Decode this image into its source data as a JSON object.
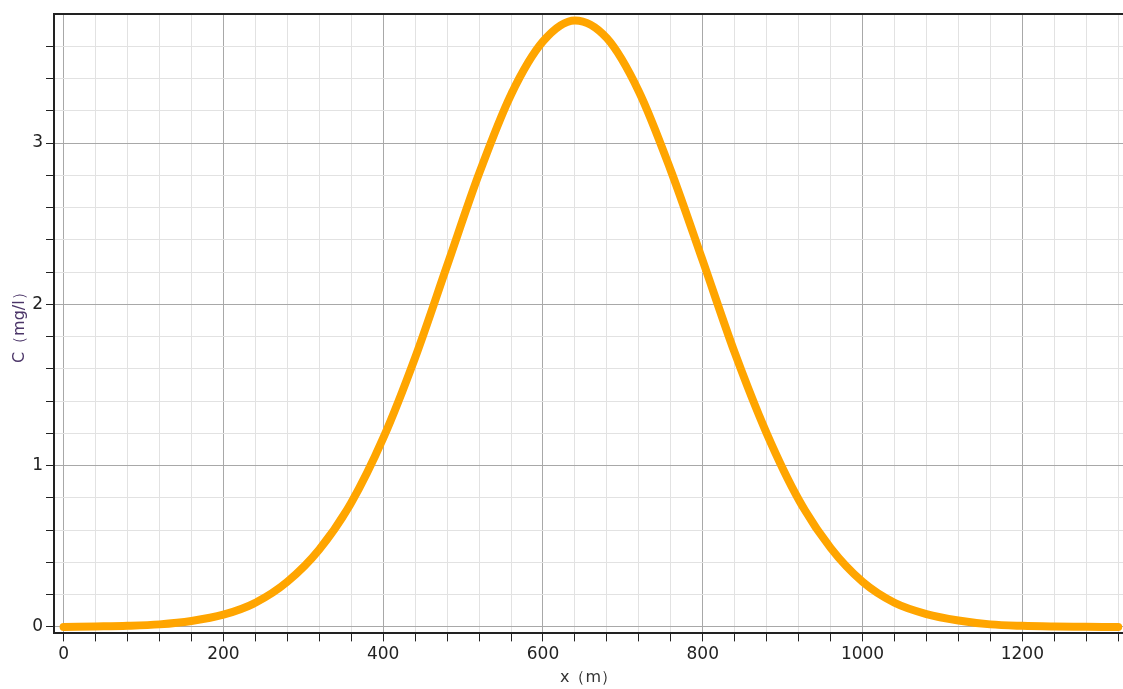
{
  "chart_data": {
    "type": "line",
    "xlabel": "x（m）",
    "ylabel": "C（mg/l）",
    "x": [
      0,
      40,
      80,
      120,
      160,
      200,
      240,
      280,
      320,
      360,
      400,
      440,
      480,
      520,
      560,
      600,
      640,
      680,
      720,
      760,
      800,
      840,
      880,
      920,
      960,
      1000,
      1040,
      1080,
      1120,
      1160,
      1200,
      1240,
      1280,
      1320
    ],
    "series": [
      {
        "color": "#ffa500",
        "values": [
          0,
          0.003,
          0.007,
          0.016,
          0.037,
          0.076,
          0.15,
          0.28,
          0.48,
          0.77,
          1.17,
          1.67,
          2.24,
          2.81,
          3.3,
          3.63,
          3.76,
          3.65,
          3.32,
          2.83,
          2.27,
          1.7,
          1.2,
          0.79,
          0.49,
          0.28,
          0.15,
          0.08,
          0.04,
          0.016,
          0.007,
          0.003,
          0.001,
          0
        ]
      }
    ],
    "xlim": [
      -12,
      1326
    ],
    "ylim": [
      -0.04,
      3.8
    ],
    "xticks": [
      0,
      {
        "value": 40,
        "label": null
      },
      {
        "value": 80,
        "label": null
      },
      {
        "value": 120,
        "label": null
      },
      {
        "value": 160,
        "label": null
      },
      200,
      {
        "value": 240,
        "label": null
      },
      {
        "value": 280,
        "label": null
      },
      {
        "value": 320,
        "label": null
      },
      {
        "value": 360,
        "label": null
      },
      400,
      {
        "value": 440,
        "label": null
      },
      {
        "value": 480,
        "label": null
      },
      {
        "value": 520,
        "label": null
      },
      {
        "value": 560,
        "label": null
      },
      600,
      {
        "value": 640,
        "label": null
      },
      {
        "value": 680,
        "label": null
      },
      {
        "value": 720,
        "label": null
      },
      {
        "value": 760,
        "label": null
      },
      800,
      {
        "value": 840,
        "label": null
      },
      {
        "value": 880,
        "label": null
      },
      {
        "value": 920,
        "label": null
      },
      {
        "value": 960,
        "label": null
      },
      1000,
      {
        "value": 1040,
        "label": null
      },
      {
        "value": 1080,
        "label": null
      },
      {
        "value": 1120,
        "label": null
      },
      {
        "value": 1160,
        "label": null
      },
      1200,
      {
        "value": 1240,
        "label": null
      },
      {
        "value": 1280,
        "label": null
      },
      {
        "value": 1320,
        "label": null
      }
    ],
    "yticks": [
      0,
      {
        "value": 0.2,
        "label": null
      },
      {
        "value": 0.4,
        "label": null
      },
      {
        "value": 0.6,
        "label": null
      },
      {
        "value": 0.8,
        "label": null
      },
      1,
      {
        "value": 1.2,
        "label": null
      },
      {
        "value": 1.4,
        "label": null
      },
      {
        "value": 1.6,
        "label": null
      },
      {
        "value": 1.8,
        "label": null
      },
      2,
      {
        "value": 2.2,
        "label": null
      },
      {
        "value": 2.4,
        "label": null
      },
      {
        "value": 2.6,
        "label": null
      },
      {
        "value": 2.8,
        "label": null
      },
      3,
      {
        "value": 3.2,
        "label": null
      },
      {
        "value": 3.4,
        "label": null
      },
      {
        "value": 3.6,
        "label": null
      }
    ],
    "grid": true,
    "legend": false,
    "marker": "none",
    "line_style": "solid"
  }
}
